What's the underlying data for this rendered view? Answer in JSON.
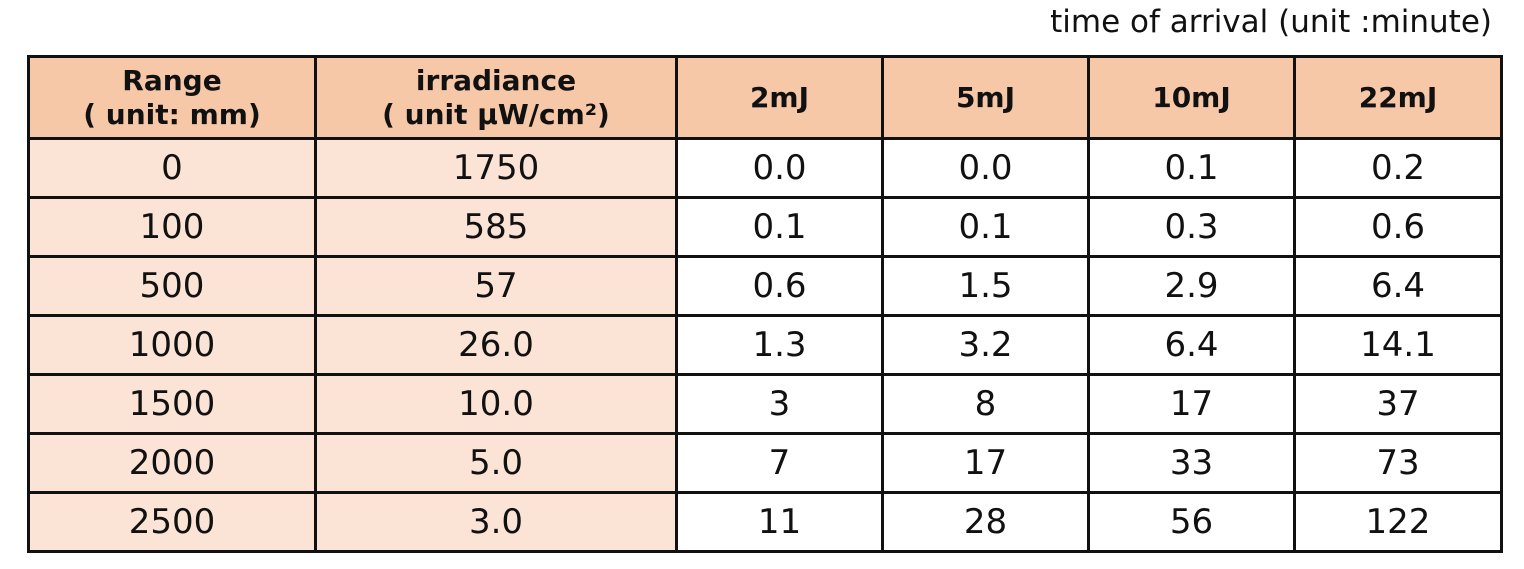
{
  "caption": "time of arrival (unit :minute)",
  "table": {
    "header": [
      [
        "Range",
        "( unit: mm)"
      ],
      [
        "irradiance",
        "( unit μW/cm²)"
      ],
      [
        "2mJ"
      ],
      [
        "5mJ"
      ],
      [
        "10mJ"
      ],
      [
        "22mJ"
      ]
    ],
    "rows": [
      [
        "0",
        "1750",
        "0.0",
        "0.0",
        "0.1",
        "0.2"
      ],
      [
        "100",
        "585",
        "0.1",
        "0.1",
        "0.3",
        "0.6"
      ],
      [
        "500",
        "57",
        "0.6",
        "1.5",
        "2.9",
        "6.4"
      ],
      [
        "1000",
        "26.0",
        "1.3",
        "3.2",
        "6.4",
        "14.1"
      ],
      [
        "1500",
        "10.0",
        "3",
        "8",
        "17",
        "37"
      ],
      [
        "2000",
        "5.0",
        "7",
        "17",
        "33",
        "73"
      ],
      [
        "2500",
        "3.0",
        "11",
        "28",
        "56",
        "122"
      ]
    ]
  }
}
